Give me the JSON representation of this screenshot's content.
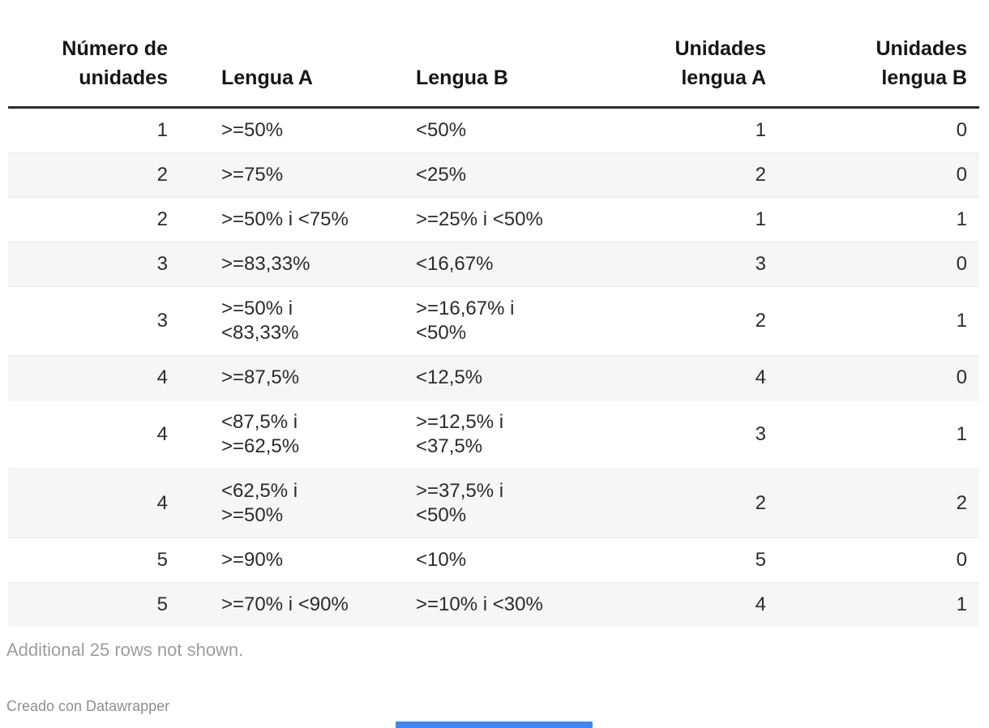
{
  "chart_data": {
    "type": "table",
    "columns": [
      "Número de\nunidades",
      "Lengua A",
      "Lengua B",
      "Unidades\nlengua A",
      "Unidades\nlengua B"
    ],
    "column_alignments": [
      "right",
      "left",
      "left",
      "right",
      "right"
    ],
    "rows": [
      [
        "1",
        ">=50%",
        "<50%",
        "1",
        "0"
      ],
      [
        "2",
        ">=75%",
        "<25%",
        "2",
        "0"
      ],
      [
        "2",
        ">=50% i <75%",
        ">=25% i <50%",
        "1",
        "1"
      ],
      [
        "3",
        ">=83,33%",
        "<16,67%",
        "3",
        "0"
      ],
      [
        "3",
        ">=50% i\n<83,33%",
        ">=16,67% i\n<50%",
        "2",
        "1"
      ],
      [
        "4",
        ">=87,5%",
        "<12,5%",
        "4",
        "0"
      ],
      [
        "4",
        "<87,5% i\n>=62,5%",
        ">=12,5% i\n<37,5%",
        "3",
        "1"
      ],
      [
        "4",
        "<62,5% i\n>=50%",
        ">=37,5% i\n<50%",
        "2",
        "2"
      ],
      [
        "5",
        ">=90%",
        "<10%",
        "5",
        "0"
      ],
      [
        "5",
        ">=70% i <90%",
        ">=10% i <30%",
        "4",
        "1"
      ]
    ],
    "footnote": "Additional 25 rows not shown.",
    "attribution": "Creado con Datawrapper",
    "layout": {
      "zebra_striping": true,
      "stripe_color": "#f6f6f6",
      "header_rule_color": "#2e2e2e",
      "row_divider_color": "#e9e9e9",
      "text_color": "#2b2b2b",
      "footnote_color": "#9d9d9d",
      "bottom_bar_color": "#4285f4"
    }
  }
}
